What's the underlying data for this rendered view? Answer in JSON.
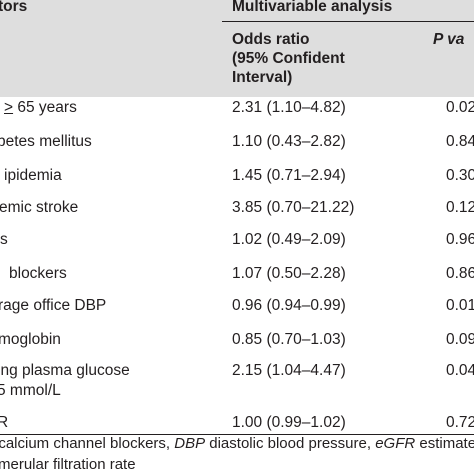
{
  "header": {
    "factors": "tors",
    "multivariable": "Multivariable analysis",
    "or_line1": "Odds ratio",
    "or_line2": "(95% Confident",
    "or_line3": "Interval)",
    "p_label": "P va"
  },
  "rows": [
    {
      "factor": "> 65 years",
      "factor_prefix": "",
      "or": "2.31 (1.10–4.82)",
      "p": "0.02"
    },
    {
      "factor": "betes mellitus",
      "or": "1.10 (0.43–2.82)",
      "p": "0.84"
    },
    {
      "factor": "ipidemia",
      "or": "1.45 (0.71–2.94)",
      "p": "0.30"
    },
    {
      "factor": "emic stroke",
      "or": "3.85 (0.70–21.22)",
      "p": "0.12"
    },
    {
      "factor": "s",
      "or": "1.02 (0.49–2.09)",
      "p": "0.96"
    },
    {
      "factor": "blockers",
      "or": "1.07 (0.50–2.28)",
      "p": "0.86"
    },
    {
      "factor": "rage office DBP",
      "or": "0.96 (0.94–0.99)",
      "p": "0.01"
    },
    {
      "factor": "moglobin",
      "or": "0.85 (0.70–1.03)",
      "p": "0.09"
    },
    {
      "factor_line1": "ing plasma glucose",
      "factor_line2": "5 mmol/L",
      "or": "2.15 (1.04–4.47)",
      "p": "0.04"
    },
    {
      "factor": "R",
      "or": "1.00 (0.99–1.02)",
      "p": "0.72"
    }
  ],
  "footnote": {
    "line1_a": ": calcium channel blockers, ",
    "line1_b": "DBP",
    "line1_c": " diastolic blood pressure, ",
    "line1_d": "eGFR",
    "line1_e": " estimate",
    "line2": "merular filtration rate"
  },
  "colors": {
    "header_bg": "#dedede",
    "text": "#231f20"
  }
}
